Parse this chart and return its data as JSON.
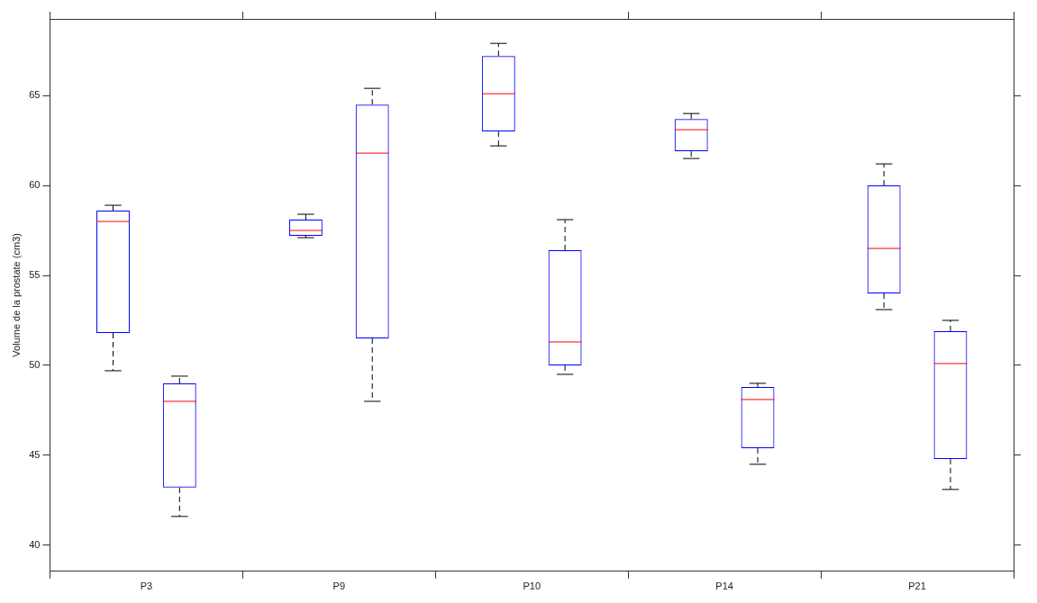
{
  "chart_data": {
    "type": "box",
    "ylabel": "Volume de la prostate (cm3)",
    "categories": [
      "P3",
      "P9",
      "P10",
      "P14",
      "P21"
    ],
    "ylim": [
      38.55,
      69.26
    ],
    "yticks": [
      40,
      45,
      50,
      55,
      60,
      65
    ],
    "grid": false,
    "legend": false,
    "series": [
      {
        "color": "#0000ff",
        "boxes": [
          {
            "low": 49.7,
            "q1": 51.8,
            "median": 58.0,
            "q3": 58.6,
            "high": 58.9
          },
          {
            "low": 57.1,
            "q1": 57.2,
            "median": 57.5,
            "q3": 58.1,
            "high": 58.4
          },
          {
            "low": 62.2,
            "q1": 63.0,
            "median": 65.1,
            "q3": 67.2,
            "high": 67.9
          },
          {
            "low": 61.5,
            "q1": 61.9,
            "median": 63.1,
            "q3": 63.7,
            "high": 64.0
          },
          {
            "low": 53.1,
            "q1": 54.0,
            "median": 56.5,
            "q3": 60.0,
            "high": 61.2
          }
        ]
      },
      {
        "color": "#0000ff",
        "boxes": [
          {
            "low": 41.6,
            "q1": 43.2,
            "median": 48.0,
            "q3": 49.0,
            "high": 49.4
          },
          {
            "low": 48.0,
            "q1": 51.5,
            "median": 61.8,
            "q3": 64.5,
            "high": 65.4
          },
          {
            "low": 49.5,
            "q1": 50.0,
            "median": 51.3,
            "q3": 56.4,
            "high": 58.1
          },
          {
            "low": 44.5,
            "q1": 45.4,
            "median": 48.1,
            "q3": 48.8,
            "high": 49.0
          },
          {
            "low": 43.1,
            "q1": 44.8,
            "median": 50.1,
            "q3": 51.9,
            "high": 52.5
          }
        ]
      }
    ]
  }
}
